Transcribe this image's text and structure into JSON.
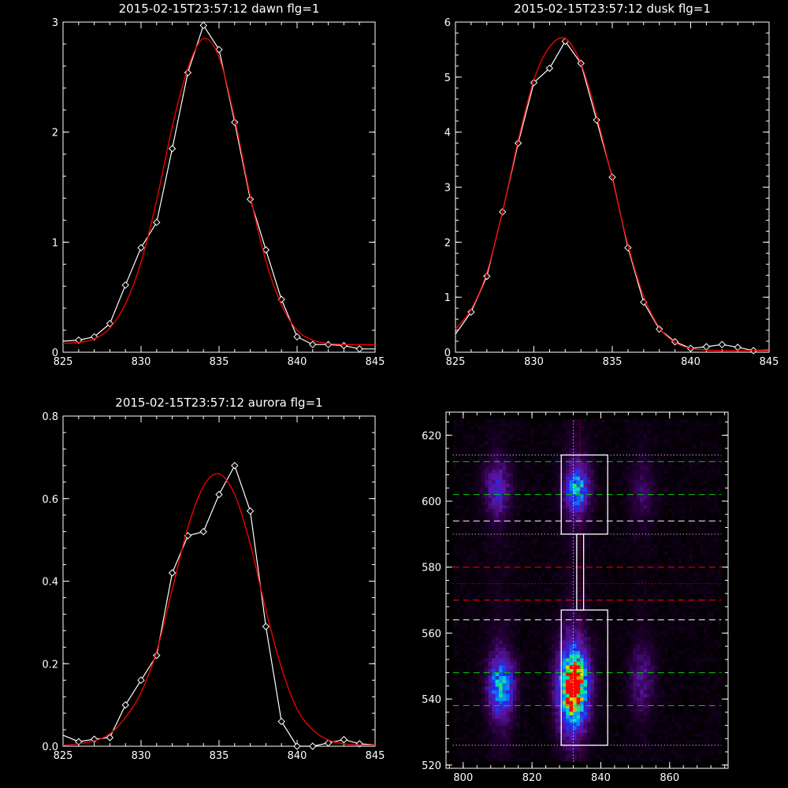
{
  "chart_data": [
    {
      "type": "line",
      "title": "2015-02-15T23:57:12 dawn flg=1",
      "xlim": [
        825,
        845
      ],
      "ylim": [
        0,
        3
      ],
      "xticks": [
        "825",
        "830",
        "835",
        "840",
        "845"
      ],
      "yticks": [
        "0",
        "1",
        "2",
        "3"
      ],
      "series": [
        {
          "color": "#ffffff",
          "marker": "diamond",
          "x": [
            825,
            826,
            827,
            828,
            829,
            830,
            831,
            832,
            833,
            834,
            835,
            836,
            837,
            838,
            839,
            840,
            841,
            842,
            843,
            844,
            845
          ],
          "y": [
            0.1,
            0.11,
            0.14,
            0.26,
            0.61,
            0.95,
            1.18,
            1.85,
            2.54,
            2.97,
            2.75,
            2.09,
            1.39,
            0.93,
            0.48,
            0.14,
            0.07,
            0.07,
            0.06,
            0.03,
            0.03
          ]
        },
        {
          "color": "#ff0000",
          "x": [
            825,
            826,
            827,
            828,
            829,
            830,
            831,
            832,
            833,
            834,
            835,
            836,
            837,
            838,
            839,
            840,
            841,
            842,
            843,
            844,
            845
          ],
          "y": [
            0.08,
            0.09,
            0.12,
            0.22,
            0.44,
            0.82,
            1.38,
            2.05,
            2.58,
            2.85,
            2.68,
            2.12,
            1.42,
            0.83,
            0.43,
            0.2,
            0.11,
            0.08,
            0.07,
            0.07,
            0.07
          ]
        }
      ]
    },
    {
      "type": "line",
      "title": "2015-02-15T23:57:12 dusk flg=1",
      "xlim": [
        825,
        845
      ],
      "ylim": [
        0,
        6
      ],
      "xticks": [
        "825",
        "830",
        "835",
        "840",
        "845"
      ],
      "yticks": [
        "0",
        "1",
        "2",
        "3",
        "4",
        "5",
        "6"
      ],
      "series": [
        {
          "color": "#ffffff",
          "marker": "diamond",
          "x": [
            825,
            826,
            827,
            828,
            829,
            830,
            831,
            832,
            833,
            834,
            835,
            836,
            837,
            838,
            839,
            840,
            841,
            842,
            843,
            844,
            845
          ],
          "y": [
            0.33,
            0.73,
            1.38,
            2.55,
            3.8,
            4.9,
            5.16,
            5.65,
            5.25,
            4.22,
            3.18,
            1.9,
            0.91,
            0.42,
            0.19,
            0.07,
            0.1,
            0.14,
            0.09,
            0.03,
            0.04
          ]
        },
        {
          "color": "#ff0000",
          "x": [
            825,
            826,
            827,
            828,
            829,
            830,
            831,
            832,
            833,
            834,
            835,
            836,
            837,
            838,
            839,
            840,
            841,
            842,
            843,
            844,
            845
          ],
          "y": [
            0.42,
            0.78,
            1.45,
            2.55,
            3.85,
            4.95,
            5.55,
            5.7,
            5.25,
            4.3,
            3.15,
            1.95,
            1.02,
            0.45,
            0.18,
            0.07,
            0.04,
            0.03,
            0.03,
            0.03,
            0.03
          ]
        }
      ]
    },
    {
      "type": "line",
      "title": "2015-02-15T23:57:12 aurora flg=1",
      "xlim": [
        825,
        845
      ],
      "ylim": [
        0,
        0.8
      ],
      "xticks": [
        "825",
        "830",
        "835",
        "840",
        "845"
      ],
      "yticks": [
        "0.0",
        "0.2",
        "0.4",
        "0.6",
        "0.8"
      ],
      "series": [
        {
          "color": "#ffffff",
          "marker": "diamond",
          "x": [
            825,
            826,
            827,
            828,
            829,
            830,
            831,
            832,
            833,
            834,
            835,
            836,
            837,
            838,
            839,
            840,
            841,
            842,
            843,
            844,
            845
          ],
          "y": [
            0.027,
            0.011,
            0.017,
            0.021,
            0.1,
            0.16,
            0.22,
            0.42,
            0.51,
            0.52,
            0.61,
            0.68,
            0.57,
            0.29,
            0.06,
            0.0,
            0.0,
            0.008,
            0.016,
            0.006,
            0.003
          ]
        },
        {
          "color": "#ff0000",
          "x": [
            825,
            826,
            827,
            828,
            829,
            830,
            831,
            832,
            833,
            834,
            835,
            836,
            837,
            838,
            839,
            840,
            841,
            842,
            843,
            844,
            845
          ],
          "y": [
            0.002,
            0.006,
            0.013,
            0.03,
            0.07,
            0.13,
            0.23,
            0.38,
            0.53,
            0.63,
            0.66,
            0.61,
            0.49,
            0.33,
            0.19,
            0.09,
            0.04,
            0.015,
            0.006,
            0.003,
            0.003
          ]
        }
      ]
    },
    {
      "type": "heatmap",
      "xlim": [
        795,
        877
      ],
      "ylim": [
        519,
        627
      ],
      "xticks": [
        "800",
        "820",
        "840",
        "860"
      ],
      "yticks": [
        "520",
        "540",
        "560",
        "580",
        "600",
        "620"
      ],
      "sources": [
        {
          "x": 811,
          "y": 544,
          "sx": 2.6,
          "sy": 6,
          "amp": 0.58
        },
        {
          "x": 810,
          "y": 604,
          "sx": 2.6,
          "sy": 5.5,
          "amp": 0.3
        },
        {
          "x": 832,
          "y": 544,
          "sx": 3,
          "sy": 8,
          "amp": 1.0
        },
        {
          "x": 833,
          "y": 604,
          "sx": 2.5,
          "sy": 5,
          "amp": 0.55
        },
        {
          "x": 852,
          "y": 546,
          "sx": 2.5,
          "sy": 7,
          "amp": 0.2
        },
        {
          "x": 852,
          "y": 603,
          "sx": 2.5,
          "sy": 6,
          "amp": 0.14
        }
      ],
      "boxes": [
        {
          "x0": 828.5,
          "x1": 842,
          "y0": 526,
          "y1": 567
        },
        {
          "x0": 828.5,
          "x1": 842,
          "y0": 590,
          "y1": 614
        }
      ],
      "connector": {
        "x0": 833,
        "x1": 835,
        "y0": 567,
        "y1": 590
      },
      "hlines": [
        {
          "y": 612,
          "color": "#00cc00",
          "style": "dash"
        },
        {
          "y": 602,
          "color": "#00cc00",
          "style": "dash"
        },
        {
          "y": 594,
          "color": "#ffffff",
          "style": "dash"
        },
        {
          "y": 590,
          "color": "#ffffff",
          "style": "dot"
        },
        {
          "y": 580,
          "color": "#ff0000",
          "style": "dash"
        },
        {
          "y": 575,
          "color": "#ff0000",
          "style": "dot"
        },
        {
          "y": 570,
          "color": "#ff0000",
          "style": "dash"
        },
        {
          "y": 564,
          "color": "#ffffff",
          "style": "dash"
        },
        {
          "y": 548,
          "color": "#00cc00",
          "style": "dash"
        },
        {
          "y": 538,
          "color": "#00cc00",
          "style": "dash"
        },
        {
          "y": 526,
          "color": "#ffffff",
          "style": "dot"
        },
        {
          "y": 614,
          "color": "#ffffff",
          "style": "dot"
        }
      ],
      "vlines": [
        {
          "x": 832,
          "color": "#ffffff",
          "style": "dot"
        },
        {
          "x": 834,
          "color": "#ff0000",
          "style": "dot"
        }
      ]
    }
  ]
}
